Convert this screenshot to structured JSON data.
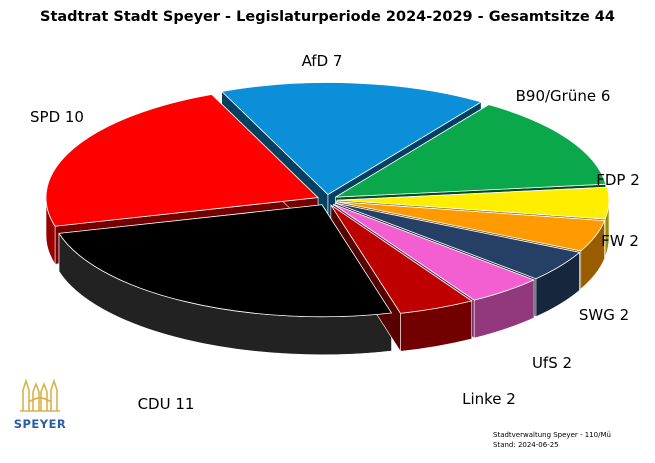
{
  "chart_data": {
    "type": "pie",
    "title": "Stadtrat Stadt Speyer - Legislaturperiode 2024-2029 - Gesamtsitze 44",
    "slices": [
      {
        "label": "AfD 7",
        "party": "AfD",
        "value": 7,
        "color": "#0a8fd8"
      },
      {
        "label": "B90/Grüne 6",
        "party": "B90/Grüne",
        "value": 6,
        "color": "#0aa84a"
      },
      {
        "label": "FDP 2",
        "party": "FDP",
        "value": 2,
        "color": "#ffee00"
      },
      {
        "label": "FW 2",
        "party": "FW",
        "value": 2,
        "color": "#ff9a00"
      },
      {
        "label": "SWG 2",
        "party": "SWG",
        "value": 2,
        "color": "#253f66"
      },
      {
        "label": "UfS 2",
        "party": "UfS",
        "value": 2,
        "color": "#f35fd0"
      },
      {
        "label": "Linke 2",
        "party": "Linke",
        "value": 2,
        "color": "#bf0000"
      },
      {
        "label": "CDU 11",
        "party": "CDU",
        "value": 11,
        "color": "#000000"
      },
      {
        "label": "SPD 10",
        "party": "SPD",
        "value": 10,
        "color": "#ff0000"
      }
    ],
    "total": 44,
    "exploded": true
  },
  "logo": {
    "text": "SPEYER",
    "icon": "speyer-cathedral-icon"
  },
  "footer": {
    "line1": "Stadtverwaltung Speyer - 110/Mü",
    "line2": "Stand: 2024-06-25"
  }
}
